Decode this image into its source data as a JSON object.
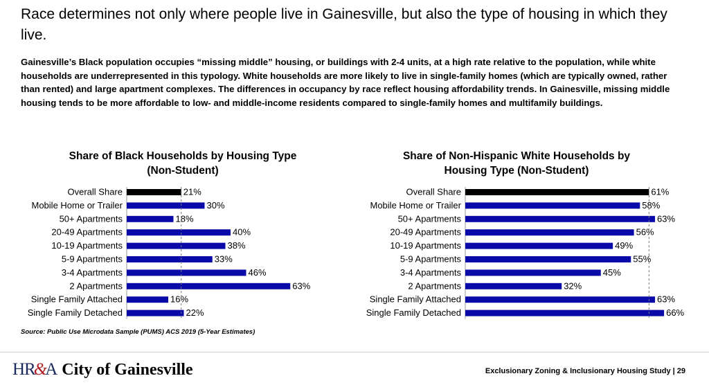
{
  "slide": {
    "title": "Race determines not only where people live in Gainesville, but also the type of housing in which they live.",
    "body": "Gainesville’s Black population occupies “missing middle” housing, or buildings with 2-4 units, at a high rate relative to the population, while white households are underrepresented in this typology. White households are more likely to live in single-family homes (which are typically owned, rather than rented) and large apartment complexes. The differences in occupancy by race reflect housing affordability trends. In Gainesville, missing middle housing tends to be more affordable to low- and middle-income residents compared to single-family homes and multifamily buildings.",
    "source": "Source: Public Use Microdata Sample (PUMS) ACS 2019 (5-Year Estimates)",
    "footer": "Exclusionary Zoning & Inclusionary Housing Study  |  29",
    "logo_mark": "HR&A",
    "logo_text": "City of Gainesville"
  },
  "colors": {
    "overall": "#000000",
    "bars": "#0a0aa8",
    "reference": "#777777"
  },
  "chart_data": [
    {
      "type": "bar",
      "orientation": "horizontal",
      "title_lines": [
        "Share of Black Households by Housing Type",
        "(Non-Student)"
      ],
      "categories": [
        "Overall Share",
        "Mobile Home or Trailer",
        "50+ Apartments",
        "20-49 Apartments",
        "10-19 Apartments",
        "5-9 Apartments",
        "3-4 Apartments",
        "2 Apartments",
        "Single Family Attached",
        "Single Family Detached"
      ],
      "values": [
        21,
        30,
        18,
        40,
        38,
        33,
        46,
        63,
        16,
        22
      ],
      "labels": [
        "21%",
        "30%",
        "18%",
        "40%",
        "38%",
        "33%",
        "46%",
        "63%",
        "16%",
        "22%"
      ],
      "reference_value": 21,
      "xlim": [
        0,
        100
      ]
    },
    {
      "type": "bar",
      "orientation": "horizontal",
      "title_lines": [
        "Share of Non-Hispanic White Households by",
        "Housing Type (Non-Student)"
      ],
      "categories": [
        "Overall Share",
        "Mobile Home or Trailer",
        "50+ Apartments",
        "20-49 Apartments",
        "10-19 Apartments",
        "5-9 Apartments",
        "3-4 Apartments",
        "2 Apartments",
        "Single Family Attached",
        "Single Family Detached"
      ],
      "values": [
        61,
        58,
        63,
        56,
        49,
        55,
        45,
        32,
        63,
        66
      ],
      "labels": [
        "61%",
        "58%",
        "63%",
        "56%",
        "49%",
        "55%",
        "45%",
        "32%",
        "63%",
        "66%"
      ],
      "reference_value": 61,
      "xlim": [
        0,
        100
      ]
    }
  ]
}
